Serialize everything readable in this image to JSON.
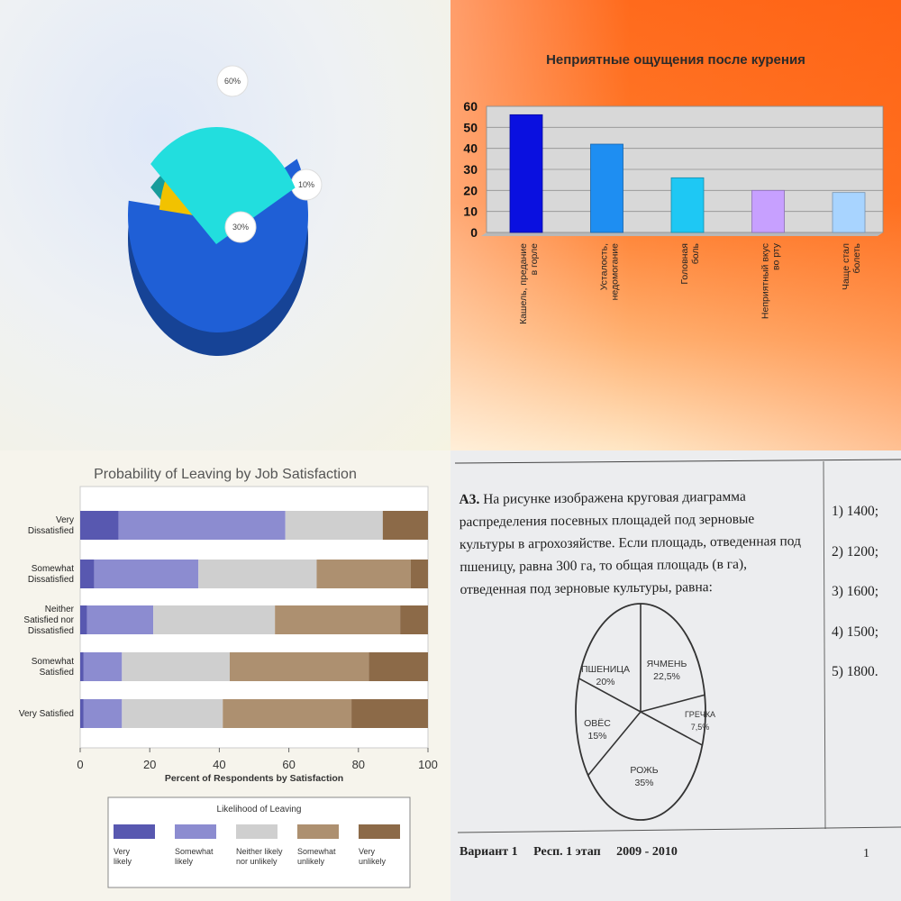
{
  "chart_data": [
    {
      "type": "pie",
      "slices": [
        {
          "label": "60%",
          "value": 60,
          "color": "#1f5fd6"
        },
        {
          "label": "10%",
          "value": 10,
          "color": "#f2c200"
        },
        {
          "label": "30%",
          "value": 30,
          "color": "#22dede"
        }
      ]
    },
    {
      "type": "bar",
      "title": "Неприятные ощущения после курения",
      "categories": [
        "Кашель, предание в горле",
        "Усталость, недомогание",
        "Головная боль",
        "Неприятный вкус во рту",
        "Чаще стал болеть"
      ],
      "values": [
        56,
        42,
        26,
        20,
        19
      ],
      "colors": [
        "#0a10e0",
        "#1e8ef2",
        "#1ec8f4",
        "#c7a0ff",
        "#a8d4ff"
      ],
      "ylim": [
        0,
        60
      ],
      "yticks": [
        "0",
        "10",
        "20",
        "30",
        "40",
        "50",
        "60"
      ]
    },
    {
      "type": "bar",
      "title": "Probability of Leaving by Job Satisfaction",
      "xlabel": "Percent of Respondents by Satisfaction",
      "categories": [
        "Very Dissatisfied",
        "Somewhat Dissatisfied",
        "Neither Satisfied nor Dissatisfied",
        "Somewhat Satisfied",
        "Very Satisfied"
      ],
      "series": [
        {
          "name": "Very likely",
          "values": [
            11,
            4,
            2,
            1,
            1
          ],
          "color": "#5858b0"
        },
        {
          "name": "Somewhat likely",
          "values": [
            48,
            30,
            19,
            11,
            11
          ],
          "color": "#8c8cd0"
        },
        {
          "name": "Neither likely nor unlikely",
          "values": [
            28,
            34,
            35,
            31,
            29
          ],
          "color": "#cfcfcf"
        },
        {
          "name": "Somewhat unlikely",
          "values": [
            0,
            27,
            36,
            40,
            37
          ],
          "color": "#ad9070"
        },
        {
          "name": "Very unlikely",
          "values": [
            13,
            5,
            8,
            17,
            22
          ],
          "color": "#8c6a48"
        }
      ],
      "xlim": [
        0,
        100
      ],
      "xticks": [
        "0",
        "20",
        "40",
        "60",
        "80",
        "100"
      ],
      "legend_title": "Likelihood of Leaving",
      "legend_position": "bottom"
    },
    {
      "type": "pie",
      "slices": [
        {
          "label": "ЯЧМЕНЬ",
          "value": 22.5,
          "text": "22,5%"
        },
        {
          "label": "ГРЕЧКА",
          "value": 7.5,
          "text": "7,5%"
        },
        {
          "label": "РОЖЬ",
          "value": 35,
          "text": "35%"
        },
        {
          "label": "ОВЁС",
          "value": 15,
          "text": "15%"
        },
        {
          "label": "ПШЕНИЦА",
          "value": 20,
          "text": "20%"
        }
      ]
    }
  ],
  "task": {
    "number": "А3.",
    "text": "На рисунке изображена круговая диаграмма распределения посевных площадей под зерновые культуры в агрохозяйстве. Если площадь, отведенная под пшеницу, равна 300 га, то общая площадь (в га), отведенная под зерновые культуры, равна:",
    "answers": [
      "1) 1400;",
      "2) 1200;",
      "3) 1600;",
      "4) 1500;",
      "5) 1800."
    ],
    "footer_variant": "Вариант 1",
    "footer_stage": "Респ. 1 этап",
    "footer_years": "2009 - 2010",
    "page": "1"
  }
}
